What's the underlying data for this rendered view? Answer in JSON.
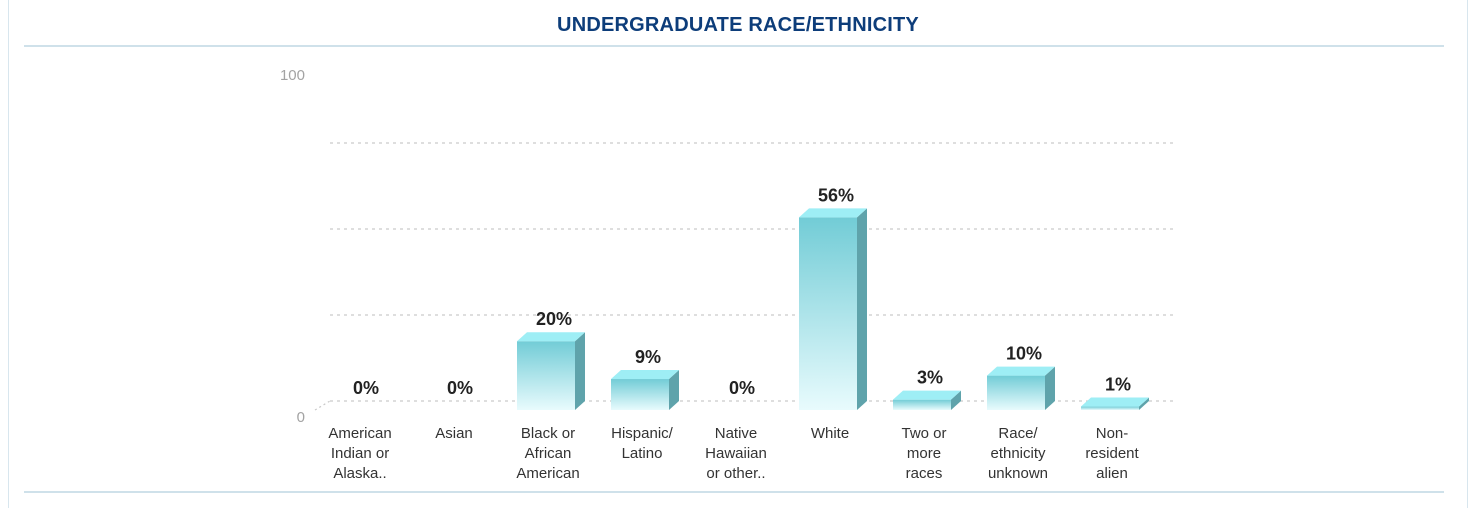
{
  "chart_data": {
    "type": "bar",
    "title": "UNDERGRADUATE RACE/ETHNICITY",
    "categories": [
      [
        "American",
        "Indian or",
        "Alaska.."
      ],
      [
        "Asian"
      ],
      [
        "Black or",
        "African",
        "American"
      ],
      [
        "Hispanic/",
        "Latino"
      ],
      [
        "Native",
        "Hawaiian",
        "or other.."
      ],
      [
        "White"
      ],
      [
        "Two or",
        "more",
        "races"
      ],
      [
        "Race/",
        "ethnicity",
        "unknown"
      ],
      [
        "Non-",
        "resident",
        "alien"
      ]
    ],
    "values": [
      0,
      0,
      20,
      9,
      0,
      56,
      3,
      10,
      1
    ],
    "value_labels": [
      "0%",
      "0%",
      "20%",
      "9%",
      "0%",
      "56%",
      "3%",
      "10%",
      "1%"
    ],
    "y_tick_labels": [
      "0",
      "100"
    ],
    "ylim": [
      0,
      100
    ],
    "grid": true,
    "colors": {
      "bar_top": "#9eeef5",
      "bar_front_top": "#72ccd6",
      "bar_front_bottom": "#e8fbfd",
      "bar_side": "#5fa3ab",
      "grid": "#c9c9c9",
      "title": "#0d3d7a"
    }
  }
}
